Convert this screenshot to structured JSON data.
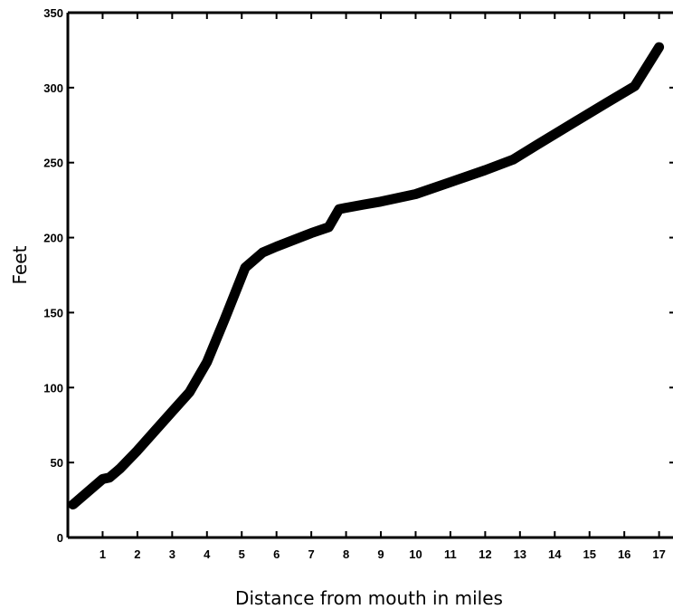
{
  "chart_data": {
    "type": "line",
    "xlabel": "Distance from mouth in miles",
    "ylabel": "Feet",
    "xlim": [
      0,
      17.4
    ],
    "ylim": [
      0,
      350
    ],
    "x_ticks": [
      1,
      2,
      3,
      4,
      5,
      6,
      7,
      8,
      9,
      10,
      11,
      12,
      13,
      14,
      15,
      16,
      17
    ],
    "y_ticks": [
      0,
      50,
      100,
      150,
      200,
      250,
      300,
      350
    ],
    "grid": false,
    "line_color": "#000000",
    "series": [
      {
        "x": [
          0.15,
          1.0,
          1.2,
          1.5,
          2.0,
          2.5,
          3.0,
          3.5,
          4.0,
          4.5,
          5.1,
          5.6,
          6.0,
          7.0,
          7.5,
          7.8,
          8.5,
          9.0,
          10.0,
          11.0,
          12.0,
          12.8,
          13.5,
          14.5,
          15.5,
          16.3,
          17.0
        ],
        "y": [
          22,
          39,
          40,
          46,
          58,
          71,
          84,
          97,
          117,
          145,
          180,
          190,
          194,
          203,
          207,
          219,
          222,
          224,
          229,
          237,
          245,
          252,
          262,
          276,
          290,
          301,
          327
        ]
      }
    ]
  }
}
